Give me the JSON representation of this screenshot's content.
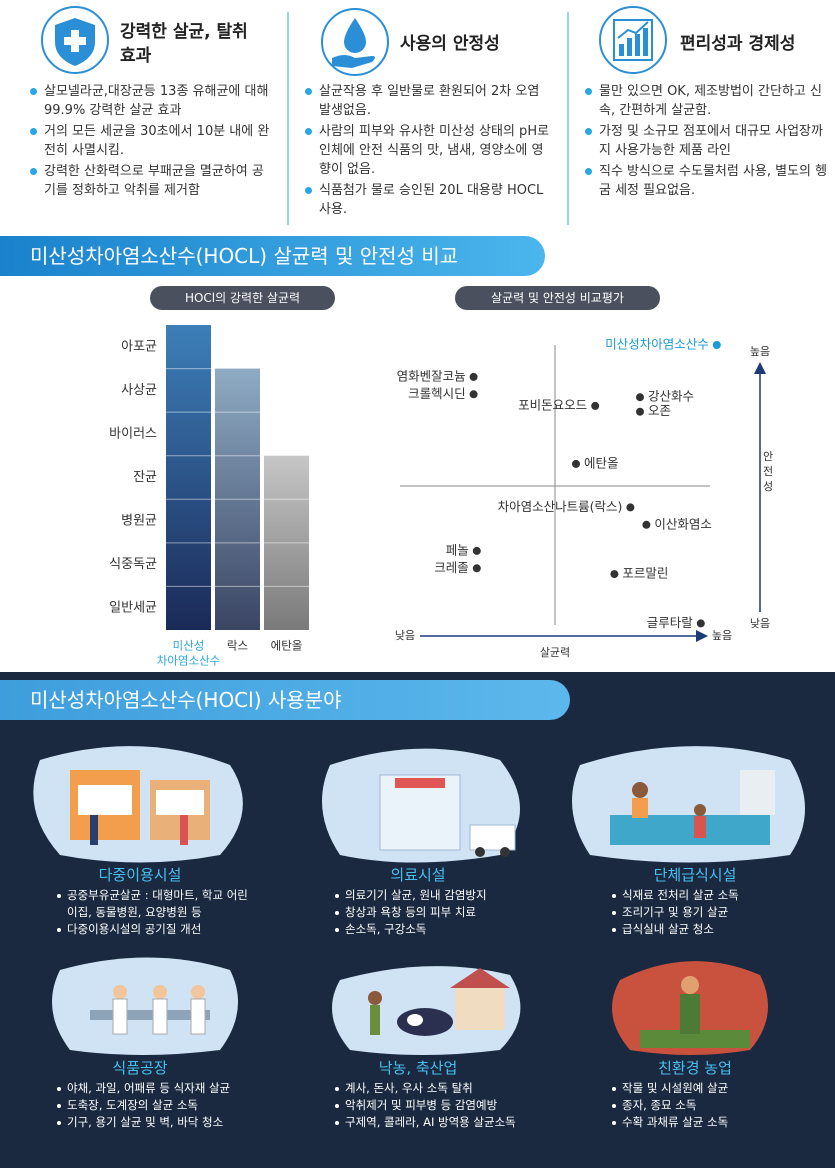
{
  "features": [
    {
      "title": "강력한 살균, 탈취효과",
      "items": [
        "살모넬라균,대장균등 13종 유해균에 대해 99.9% 강력한 살균 효과",
        "거의 모든 세균을 30초에서 10분 내에 완전히 사멸시킴.",
        "강력한 산화력으로 부패균을 멸균하여 공기를 정화하고 악취를 제거함"
      ]
    },
    {
      "title": "사용의 안정성",
      "items": [
        "살균작용 후 일반물로 환원되어 2차 오염 발생없음.",
        "사람의 피부와 유사한 미산성 상태의 pH로 인체에 안전 식품의 맛, 냄새, 영양소에 영향이 없음.",
        "식품첨가 물로 승인된 20L 대용량 HOCL 사용."
      ]
    },
    {
      "title": "편리성과 경제성",
      "items": [
        "물만 있으면 OK, 제조방법이 간단하고 신속, 간편하게 살균함.",
        "가정 및 소규모 점포에서 대규모 사업장까지 사용가능한 제품 라인",
        "직수 방식으로 수도물처럼 사용, 별도의 헹굼 세정 필요없음."
      ]
    }
  ],
  "comparison": {
    "title": "미산성차아염소산수(HOCL) 살균력 및 안전성 비교",
    "bar_chart": {
      "type": "bar",
      "title": "HOCl의 강력한 살균력",
      "levels": [
        "아포균",
        "사상균",
        "바이러스",
        "잔균",
        "병원균",
        "식중독균",
        "일반세균"
      ],
      "columns": [
        {
          "label": [
            "미산성",
            "차아염소산수"
          ],
          "reach": 7,
          "colors": [
            "#3d7fb9",
            "#1b2a58"
          ],
          "label_color": "#2aa7e3"
        },
        {
          "label": [
            "락스"
          ],
          "reach": 6,
          "colors": [
            "#8fabc4",
            "#3a4562"
          ],
          "label_color": "#333333"
        },
        {
          "label": [
            "에탄올"
          ],
          "reach": 4,
          "colors": [
            "#c6c6c6",
            "#7a7a7a"
          ],
          "label_color": "#333333"
        }
      ]
    },
    "scatter_chart": {
      "type": "scatter",
      "title": "살균력 및 안전성 비교평가",
      "x_label": "살균력",
      "x_low": "낮음",
      "x_high": "높음",
      "y_label": "안전성",
      "y_low": "낮음",
      "y_high": "높음",
      "xlim": [
        0,
        10
      ],
      "ylim": [
        0,
        10
      ],
      "points": [
        {
          "name": "미산성차아염소산수",
          "x": 9.9,
          "y": 10,
          "color": "#1a9ad6"
        },
        {
          "name": "염화벤잘코늄",
          "x": 2.3,
          "y": 8.9,
          "color": "#333333"
        },
        {
          "name": "크롤헥시딘",
          "x": 2.3,
          "y": 8.3,
          "color": "#333333"
        },
        {
          "name": "포비돈요오드",
          "x": 6.1,
          "y": 7.9,
          "color": "#333333"
        },
        {
          "name": "강산화수",
          "x": 7.5,
          "y": 8.2,
          "color": "#333333"
        },
        {
          "name": "오존",
          "x": 7.5,
          "y": 7.7,
          "color": "#333333"
        },
        {
          "name": "에탄올",
          "x": 5.5,
          "y": 5.9,
          "color": "#333333"
        },
        {
          "name": "차아염소산나트륨(락스)",
          "x": 7.2,
          "y": 4.4,
          "color": "#333333"
        },
        {
          "name": "이산화염소",
          "x": 7.7,
          "y": 3.8,
          "color": "#333333"
        },
        {
          "name": "페놀",
          "x": 2.4,
          "y": 2.9,
          "color": "#333333"
        },
        {
          "name": "크레졸",
          "x": 2.4,
          "y": 2.3,
          "color": "#333333"
        },
        {
          "name": "포르말린",
          "x": 6.7,
          "y": 2.1,
          "color": "#333333"
        },
        {
          "name": "글루타랄",
          "x": 9.4,
          "y": 0.4,
          "color": "#333333"
        }
      ]
    }
  },
  "usage": {
    "title": "미산성차아염소산수(HOCl) 사용분야",
    "cards": [
      {
        "title": "다중이용시설",
        "items": [
          "공중부유균살균 : 대형마트, 학교 어린이집, 동물병원, 요양병원 등",
          "다중이용시설의 공기질 개선"
        ]
      },
      {
        "title": "의료시설",
        "items": [
          "의료기기 살균, 원내 감염방지",
          "창상과 욕창 등의 피부 치료",
          "손소독, 구강소독"
        ]
      },
      {
        "title": "단체급식시설",
        "items": [
          "식재료 전처리 살균 소독",
          "조리기구 및 용기 살균",
          "급식실내 살균 청소"
        ]
      },
      {
        "title": "식품공장",
        "items": [
          "야채, 과일, 어패류 등 식자재 살균",
          "도축장, 도계장의 살균 소독",
          "기구, 용기 살균 및 벽, 바닥 청소"
        ]
      },
      {
        "title": "낙농, 축산업",
        "items": [
          "계사, 돈사, 우사 소독 탈취",
          "악취제거 및 피부병 등 감염예방",
          "구제역, 콜레라, AI 방역용 살균소독"
        ]
      },
      {
        "title": "친환경 농업",
        "items": [
          "작물 및 시설원예 살균",
          "종자, 종묘 소독",
          "수확 과채류 살균 소독"
        ]
      }
    ]
  }
}
